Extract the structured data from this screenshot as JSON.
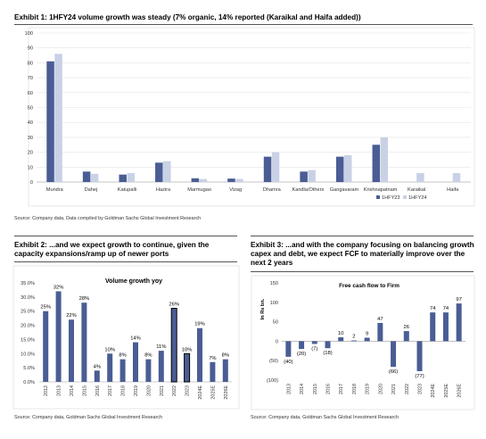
{
  "exhibit1": {
    "title": "Exhibit 1: 1HFY24 volume growth was steady (7% organic, 14% reported (Karaikal and Haifa added))",
    "source": "Source: Company data, Data compiled by Goldman Sachs Global Investment Research"
  },
  "exhibit2": {
    "title": "Exhibit 2: ...and we expect growth to continue, given the capacity expansions/ramp up of newer ports",
    "source": "Source: Company data, Goldman Sachs Global Investment Research"
  },
  "exhibit3": {
    "title": "Exhibit 3: ...and with the company focusing on balancing growth capex and debt, we expect FCF to materially improve over the next 2 years",
    "source": "Source: Company data, Goldman Sachs Global Investment Research"
  },
  "colors": {
    "h1": "#4a5d94",
    "h2": "#c9d1e6",
    "bar": "#4a5d94"
  },
  "chart_data": [
    {
      "type": "bar",
      "title": "",
      "categories": [
        "Mundra",
        "Dahej",
        "Katupalli",
        "Hazira",
        "Marmugao",
        "Vizag",
        "Dhamra",
        "Kandla/Others",
        "Gangavaram",
        "Krishnapatnam",
        "Karaikal",
        "Haifa"
      ],
      "series": [
        {
          "name": "1HFY23",
          "values": [
            81,
            7,
            5,
            13,
            2.5,
            2.3,
            17,
            7,
            17,
            25,
            0,
            0
          ]
        },
        {
          "name": "1HFY24",
          "values": [
            86,
            5.5,
            6,
            14,
            2,
            2,
            20,
            8,
            18,
            30,
            6,
            6
          ]
        }
      ],
      "ylim": [
        0,
        100
      ],
      "yticks": [
        "0",
        "10",
        "20",
        "30",
        "40",
        "50",
        "60",
        "70",
        "80",
        "90",
        "100"
      ],
      "legend": "bottom-right",
      "grid": true
    },
    {
      "type": "bar",
      "title": "Volume growth yoy",
      "categories": [
        "2012",
        "2013",
        "2014",
        "2015",
        "2016",
        "2017",
        "2018",
        "2019",
        "2020",
        "2021",
        "2022",
        "2023",
        "2024E",
        "2025E",
        "2026E"
      ],
      "values": [
        25,
        32,
        22,
        28,
        4,
        10,
        8,
        14,
        8,
        11,
        26,
        10,
        19,
        7,
        8
      ],
      "labels": [
        "25%",
        "32%",
        "22%",
        "28%",
        "4%",
        "10%",
        "8%",
        "14%",
        "8%",
        "11%",
        "26%",
        "10%",
        "19%",
        "7%",
        "8%"
      ],
      "highlighted": [
        "2022",
        "2023"
      ],
      "ylim": [
        0,
        35
      ],
      "yticks": [
        "0.0%",
        "5.0%",
        "10.0%",
        "15.0%",
        "20.0%",
        "25.0%",
        "30.0%",
        "35.0%"
      ],
      "grid": false
    },
    {
      "type": "bar",
      "title": "Free cash flow to Firm",
      "ylabel": "In Rs bn.",
      "categories": [
        "2013",
        "2014",
        "2015",
        "2016",
        "2017",
        "2018",
        "2019",
        "2020",
        "2021",
        "2022",
        "2023",
        "2024E",
        "2025E",
        "2026E"
      ],
      "values": [
        -40,
        -20,
        -7,
        -18,
        10,
        2,
        9,
        47,
        -66,
        26,
        -77,
        74,
        74,
        97
      ],
      "labels": [
        "(40)",
        "(20)",
        "(7)",
        "(18)",
        "10",
        "2",
        "9",
        "47",
        "(66)",
        "26",
        "(77)",
        "74",
        "74",
        "97"
      ],
      "ylim": [
        -100,
        150
      ],
      "yticks": [
        "(100)",
        "(50)",
        "0",
        "50",
        "100",
        "150"
      ],
      "grid": false
    }
  ]
}
